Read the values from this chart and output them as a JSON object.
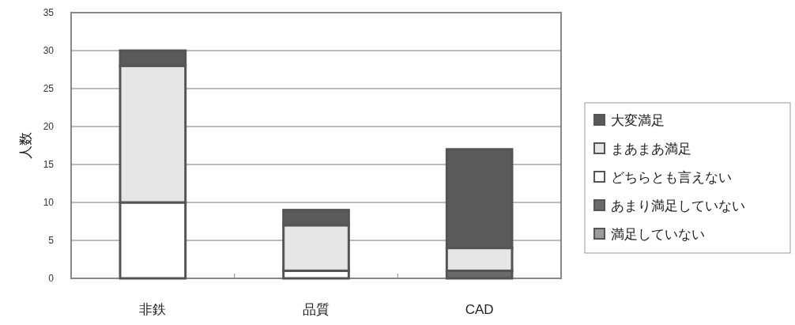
{
  "chart_data": {
    "type": "bar",
    "stacked": true,
    "ylabel": "人数",
    "categories": [
      "非鉄",
      "品質",
      "CAD"
    ],
    "series": [
      {
        "name": "満足していない",
        "color": "#9a9a9a",
        "values": [
          0,
          0,
          0
        ]
      },
      {
        "name": "あまり満足していない",
        "color": "#6a6a6a",
        "values": [
          0,
          0,
          1
        ]
      },
      {
        "name": "どちらとも言えない",
        "color": "#ffffff",
        "values": [
          10,
          1,
          0
        ]
      },
      {
        "name": "まあまあ満足",
        "color": "#e6e6e6",
        "values": [
          18,
          6,
          3
        ]
      },
      {
        "name": "大変満足",
        "color": "#5a5a5a",
        "values": [
          2,
          2,
          13
        ]
      }
    ],
    "ylim": [
      0,
      35
    ],
    "yticks": [
      0,
      5,
      10,
      15,
      20,
      25,
      30,
      35
    ],
    "grid": "y",
    "legend": "right"
  }
}
